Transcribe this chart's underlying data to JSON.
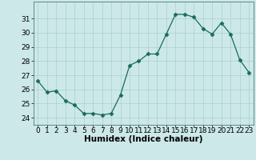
{
  "x": [
    0,
    1,
    2,
    3,
    4,
    5,
    6,
    7,
    8,
    9,
    10,
    11,
    12,
    13,
    14,
    15,
    16,
    17,
    18,
    19,
    20,
    21,
    22,
    23
  ],
  "y": [
    26.6,
    25.8,
    25.9,
    25.2,
    24.9,
    24.3,
    24.3,
    24.2,
    24.3,
    25.6,
    27.7,
    28.0,
    28.5,
    28.5,
    29.9,
    31.3,
    31.3,
    31.1,
    30.3,
    29.9,
    30.7,
    29.9,
    28.1,
    27.2
  ],
  "line_color": "#1a6b5a",
  "marker": "D",
  "marker_size": 2.5,
  "bg_color": "#cce8e8",
  "grid_color": "#aad0d0",
  "xlabel": "Humidex (Indice chaleur)",
  "ylim": [
    23.5,
    32.2
  ],
  "xlim": [
    -0.5,
    23.5
  ],
  "yticks": [
    24,
    25,
    26,
    27,
    28,
    29,
    30,
    31
  ],
  "xticks": [
    0,
    1,
    2,
    3,
    4,
    5,
    6,
    7,
    8,
    9,
    10,
    11,
    12,
    13,
    14,
    15,
    16,
    17,
    18,
    19,
    20,
    21,
    22,
    23
  ],
  "xlabel_fontsize": 7.5,
  "tick_fontsize": 6.5
}
